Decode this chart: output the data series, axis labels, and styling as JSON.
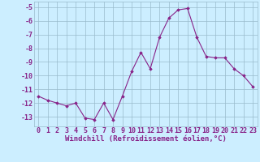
{
  "x": [
    0,
    1,
    2,
    3,
    4,
    5,
    6,
    7,
    8,
    9,
    10,
    11,
    12,
    13,
    14,
    15,
    16,
    17,
    18,
    19,
    20,
    21,
    22,
    23
  ],
  "y": [
    -11.5,
    -11.8,
    -12.0,
    -12.2,
    -12.0,
    -13.1,
    -13.2,
    -12.0,
    -13.2,
    -11.5,
    -9.7,
    -8.3,
    -9.5,
    -7.2,
    -5.8,
    -5.2,
    -5.1,
    -7.2,
    -8.6,
    -8.7,
    -8.7,
    -9.5,
    -10.0,
    -10.8
  ],
  "line_color": "#882288",
  "marker": "D",
  "marker_size": 1.8,
  "bg_color": "#cceeff",
  "grid_color": "#99bbcc",
  "xlabel": "Windchill (Refroidissement éolien,°C)",
  "xlabel_fontsize": 6.5,
  "tick_fontsize": 6.0,
  "xlim": [
    -0.5,
    23.5
  ],
  "ylim": [
    -13.7,
    -4.6
  ],
  "yticks": [
    -5,
    -6,
    -7,
    -8,
    -9,
    -10,
    -11,
    -12,
    -13
  ],
  "xticks": [
    0,
    1,
    2,
    3,
    4,
    5,
    6,
    7,
    8,
    9,
    10,
    11,
    12,
    13,
    14,
    15,
    16,
    17,
    18,
    19,
    20,
    21,
    22,
    23
  ]
}
